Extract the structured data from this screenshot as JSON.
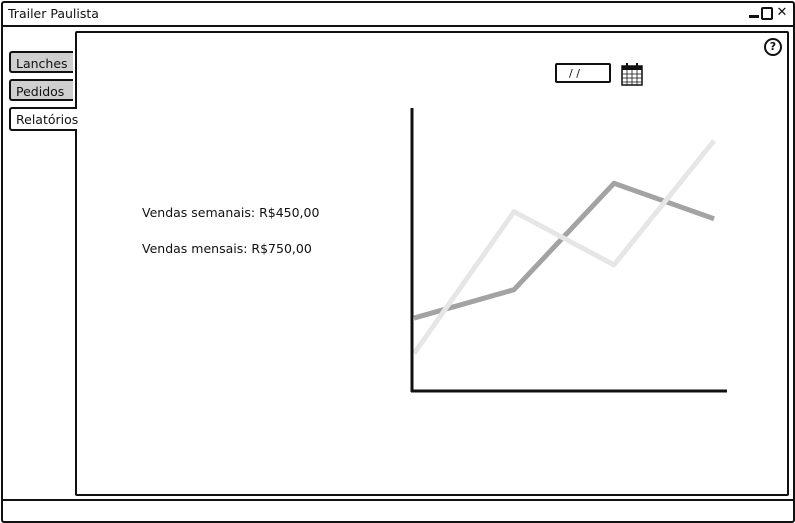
{
  "window": {
    "title": "Trailer Paulista"
  },
  "tabs": [
    {
      "label": "Lanches"
    },
    {
      "label": "Pedidos"
    },
    {
      "label": "Relatórios"
    }
  ],
  "report": {
    "date_value": "/ /",
    "weekly_sales": "Vendas semanais: R$450,00",
    "monthly_sales": "Vendas mensais: R$750,00"
  },
  "colors": {
    "series_dark": "#a3a3a3",
    "series_light": "#e6e6e6"
  },
  "chart_data": {
    "type": "line",
    "x": [
      0,
      1,
      2,
      3
    ],
    "series": [
      {
        "values": [
          1,
          5,
          3.5,
          7
        ]
      },
      {
        "values": [
          2,
          2.8,
          5.8,
          4.8
        ]
      }
    ],
    "ylim": [
      0,
      7.5
    ],
    "grid": false
  }
}
